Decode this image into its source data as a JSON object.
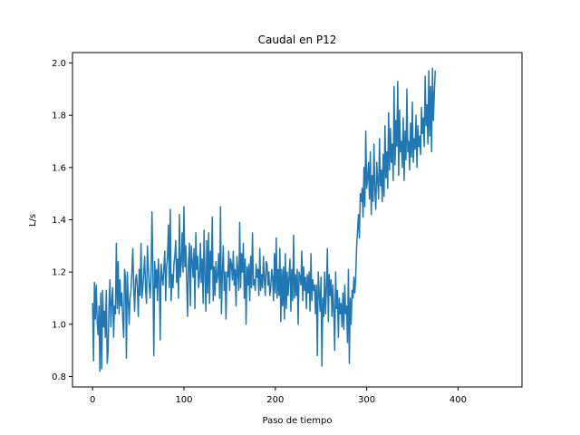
{
  "chart_data": {
    "type": "line",
    "title": "Caudal en P12",
    "xlabel": "Paso de tiempo",
    "ylabel": "L/s",
    "xlim": [
      -22,
      470
    ],
    "ylim": [
      0.76,
      2.04
    ],
    "grid": false,
    "xticks": [
      0,
      100,
      200,
      300,
      400
    ],
    "xtick_labels": [
      "0",
      "100",
      "200",
      "300",
      "400"
    ],
    "yticks": [
      0.8,
      1.0,
      1.2,
      1.4,
      1.6,
      1.8,
      2.0
    ],
    "ytick_labels": [
      "0.8",
      "1.0",
      "1.2",
      "1.4",
      "1.6",
      "1.8",
      "2.0"
    ],
    "series": [
      {
        "color": "#1f77b4",
        "values": [
          1.08,
          0.86,
          1.16,
          1.02,
          1.15,
          1.01,
          0.96,
          1.07,
          0.82,
          1.12,
          0.83,
          1.13,
          0.99,
          1.05,
          0.95,
          1.13,
          0.85,
          0.9,
          1.08,
          1.17,
          0.99,
          1.09,
          1.14,
          0.95,
          1.07,
          1.04,
          1.31,
          1.06,
          1.24,
          1.04,
          1.17,
          1.07,
          1.12,
          1.02,
          0.95,
          1.21,
          1.18,
          0.87,
          1.2,
          1.1,
          1.0,
          1.1,
          1.13,
          1.2,
          1.29,
          1.14,
          1.05,
          1.17,
          1.19,
          1.14,
          1.03,
          1.21,
          1.11,
          1.31,
          1.1,
          1.14,
          1.2,
          1.26,
          1.13,
          1.08,
          1.3,
          1.22,
          1.15,
          1.1,
          1.19,
          1.43,
          1.2,
          0.88,
          1.24,
          1.14,
          1.21,
          1.09,
          1.25,
          1.18,
          0.94,
          1.23,
          1.18,
          1.15,
          1.22,
          1.28,
          1.09,
          1.22,
          1.26,
          1.38,
          1.14,
          1.44,
          1.09,
          1.19,
          1.14,
          1.23,
          1.26,
          1.32,
          1.16,
          1.25,
          1.1,
          1.42,
          1.18,
          1.23,
          1.35,
          1.2,
          1.45,
          1.22,
          1.3,
          1.16,
          1.03,
          1.24,
          1.31,
          1.07,
          1.3,
          1.24,
          1.18,
          1.29,
          1.06,
          1.35,
          1.21,
          1.26,
          1.14,
          1.18,
          1.31,
          1.16,
          1.25,
          1.08,
          1.36,
          1.19,
          1.05,
          1.32,
          1.12,
          1.35,
          1.08,
          1.28,
          1.21,
          1.41,
          1.09,
          1.22,
          1.11,
          1.24,
          1.16,
          1.19,
          1.27,
          1.1,
          1.45,
          1.04,
          1.19,
          1.3,
          1.13,
          1.2,
          1.02,
          1.2,
          1.18,
          1.28,
          1.13,
          1.25,
          1.23,
          1.17,
          1.28,
          1.15,
          1.21,
          1.07,
          1.26,
          1.2,
          1.13,
          1.39,
          1.14,
          1.27,
          1.2,
          1.31,
          1.1,
          1.25,
          1.0,
          1.22,
          1.15,
          1.23,
          1.09,
          1.26,
          1.14,
          1.35,
          1.15,
          1.17,
          1.13,
          1.23,
          1.18,
          1.21,
          1.11,
          1.29,
          1.13,
          1.19,
          1.14,
          1.26,
          1.17,
          1.11,
          1.24,
          1.23,
          1.15,
          1.2,
          1.11,
          1.14,
          1.21,
          1.18,
          1.09,
          1.27,
          1.12,
          1.33,
          1.1,
          1.21,
          1.11,
          1.29,
          1.01,
          1.21,
          1.07,
          1.22,
          1.02,
          1.27,
          1.06,
          1.2,
          1.11,
          1.18,
          1.25,
          1.05,
          1.21,
          1.09,
          1.34,
          1.1,
          1.19,
          1.11,
          1.21,
          1.0,
          1.2,
          1.18,
          1.15,
          1.28,
          1.09,
          1.22,
          1.13,
          1.18,
          1.06,
          1.19,
          1.12,
          1.2,
          1.05,
          1.27,
          1.09,
          1.17,
          1.13,
          1.15,
          1.04,
          1.15,
          0.88,
          1.2,
          1.12,
          1.05,
          1.18,
          0.84,
          1.1,
          1.03,
          1.2,
          1.04,
          1.14,
          1.29,
          1.01,
          1.19,
          1.11,
          1.17,
          1.03,
          1.15,
          1.05,
          0.9,
          1.2,
          1.06,
          1.13,
          0.95,
          1.1,
          1.04,
          1.08,
          0.99,
          1.12,
          0.98,
          1.15,
          1.04,
          1.07,
          0.93,
          1.21,
          0.85,
          1.1,
          1.0,
          1.13,
          1.1,
          1.18,
          1.12,
          1.18,
          1.3,
          1.36,
          1.42,
          1.33,
          1.5,
          1.47,
          1.52,
          1.41,
          1.6,
          1.45,
          1.74,
          1.52,
          1.56,
          1.62,
          1.48,
          1.66,
          1.42,
          1.57,
          1.47,
          1.69,
          1.51,
          1.44,
          1.62,
          1.55,
          1.48,
          1.71,
          1.53,
          1.59,
          1.47,
          1.65,
          1.49,
          1.76,
          1.56,
          1.66,
          1.52,
          1.81,
          1.59,
          1.75,
          1.62,
          1.69,
          1.55,
          1.91,
          1.61,
          1.78,
          1.68,
          1.93,
          1.57,
          1.82,
          1.66,
          1.7,
          1.6,
          1.79,
          1.55,
          1.74,
          1.63,
          1.9,
          1.66,
          1.7,
          1.59,
          1.77,
          1.64,
          1.85,
          1.62,
          1.71,
          1.67,
          1.8,
          1.6,
          1.76,
          1.68,
          1.72,
          1.65,
          1.83,
          1.73,
          1.79,
          1.68,
          1.95,
          1.76,
          1.84,
          1.69,
          1.97,
          1.72,
          1.91,
          1.66,
          1.98,
          1.78,
          1.88,
          1.97
        ]
      }
    ]
  }
}
